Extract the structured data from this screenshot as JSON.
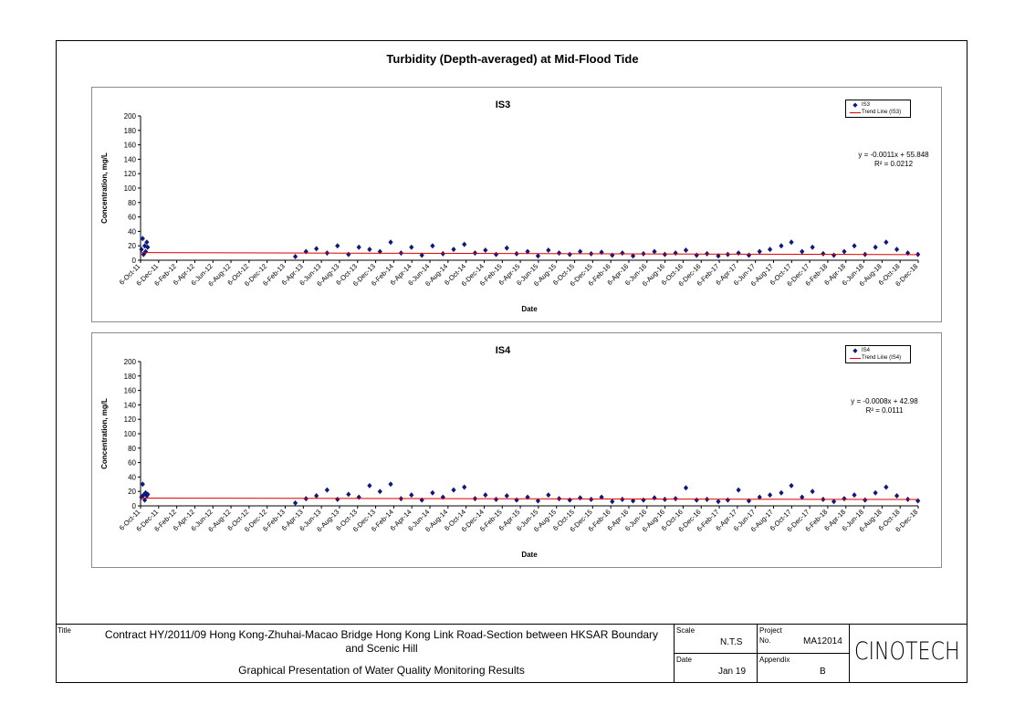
{
  "main_title": "Turbidity (Depth-averaged) at Mid-Flood Tide",
  "chart_data": [
    {
      "type": "scatter",
      "title": "IS3",
      "xlabel": "Date",
      "ylabel": "Concentration, mg/L",
      "ylim": [
        0,
        200
      ],
      "yticks": [
        0,
        20,
        40,
        60,
        80,
        100,
        120,
        140,
        160,
        180,
        200
      ],
      "xlim": [
        "2011-10-06",
        "2018-12-06"
      ],
      "xticks": [
        "6-Oct-11",
        "6-Dec-11",
        "6-Feb-12",
        "6-Apr-12",
        "6-Jun-12",
        "6-Aug-12",
        "6-Oct-12",
        "6-Dec-12",
        "6-Feb-13",
        "6-Apr-13",
        "6-Jun-13",
        "6-Aug-13",
        "6-Oct-13",
        "6-Dec-13",
        "6-Feb-14",
        "6-Apr-14",
        "6-Jun-14",
        "6-Aug-14",
        "6-Oct-14",
        "6-Dec-14",
        "6-Feb-15",
        "6-Apr-15",
        "6-Jun-15",
        "6-Aug-15",
        "6-Oct-15",
        "6-Dec-15",
        "6-Feb-16",
        "6-Apr-16",
        "6-Jun-16",
        "6-Aug-16",
        "6-Oct-16",
        "6-Dec-16",
        "6-Feb-17",
        "6-Apr-17",
        "6-Jun-17",
        "6-Aug-17",
        "6-Oct-17",
        "6-Dec-17",
        "6-Feb-18",
        "6-Apr-18",
        "6-Jun-18",
        "6-Aug-18",
        "6-Oct-18",
        "6-Dec-18"
      ],
      "legend": [
        "IS3",
        "Trend Line (IS3)"
      ],
      "legend_placement": "top-right",
      "equation": "y = -0.0011x + 55.848",
      "r_squared": "R² = 0.0212",
      "trend": {
        "start_value": 10.6,
        "end_value": 7.8
      },
      "colors": {
        "series": "#0c1a7d",
        "trend": "#e00000"
      },
      "grid": false,
      "series": [
        {
          "name": "IS3",
          "x": [
            "2011-10-09",
            "2011-10-13",
            "2011-10-16",
            "2011-10-20",
            "2011-10-23",
            "2011-10-27",
            "2011-10-30",
            "2013-03-10",
            "2013-04-15",
            "2013-05-20",
            "2013-06-25",
            "2013-07-30",
            "2013-09-05",
            "2013-10-10",
            "2013-11-15",
            "2013-12-20",
            "2014-01-25",
            "2014-03-01",
            "2014-04-05",
            "2014-05-10",
            "2014-06-15",
            "2014-07-20",
            "2014-08-25",
            "2014-09-30",
            "2014-11-05",
            "2014-12-10",
            "2015-01-15",
            "2015-02-20",
            "2015-03-25",
            "2015-05-01",
            "2015-06-05",
            "2015-07-10",
            "2015-08-15",
            "2015-09-20",
            "2015-10-25",
            "2015-12-01",
            "2016-01-05",
            "2016-02-10",
            "2016-03-15",
            "2016-04-20",
            "2016-05-25",
            "2016-07-01",
            "2016-08-05",
            "2016-09-10",
            "2016-10-15",
            "2016-11-20",
            "2016-12-25",
            "2017-02-01",
            "2017-03-05",
            "2017-04-10",
            "2017-05-15",
            "2017-06-20",
            "2017-07-25",
            "2017-09-01",
            "2017-10-05",
            "2017-11-10",
            "2017-12-15",
            "2018-01-20",
            "2018-02-25",
            "2018-04-01",
            "2018-05-05",
            "2018-06-10",
            "2018-07-15",
            "2018-08-20",
            "2018-09-25",
            "2018-11-01",
            "2018-12-05"
          ],
          "values": [
            15,
            30,
            8,
            20,
            12,
            25,
            18,
            5,
            12,
            16,
            10,
            20,
            8,
            18,
            15,
            12,
            25,
            10,
            18,
            7,
            20,
            9,
            15,
            22,
            10,
            14,
            8,
            17,
            9,
            12,
            6,
            14,
            10,
            8,
            12,
            9,
            11,
            7,
            10,
            6,
            9,
            12,
            8,
            10,
            14,
            7,
            9,
            6,
            8,
            10,
            7,
            12,
            15,
            20,
            25,
            12,
            18,
            9,
            7,
            12,
            20,
            8,
            18,
            25,
            15,
            10,
            8
          ]
        }
      ]
    },
    {
      "type": "scatter",
      "title": "IS4",
      "xlabel": "Date",
      "ylabel": "Concentration, mg/L",
      "ylim": [
        0,
        200
      ],
      "yticks": [
        0,
        20,
        40,
        60,
        80,
        100,
        120,
        140,
        160,
        180,
        200
      ],
      "xlim": [
        "2011-10-06",
        "2018-12-06"
      ],
      "xticks": [
        "6-Oct-11",
        "6-Dec-11",
        "6-Feb-12",
        "6-Apr-12",
        "6-Jun-12",
        "6-Aug-12",
        "6-Oct-12",
        "6-Dec-12",
        "6-Feb-13",
        "6-Apr-13",
        "6-Jun-13",
        "6-Aug-13",
        "6-Oct-13",
        "6-Dec-13",
        "6-Feb-14",
        "6-Apr-14",
        "6-Jun-14",
        "6-Aug-14",
        "6-Oct-14",
        "6-Dec-14",
        "6-Feb-15",
        "6-Apr-15",
        "6-Jun-15",
        "6-Aug-15",
        "6-Oct-15",
        "6-Dec-15",
        "6-Feb-16",
        "6-Apr-16",
        "6-Jun-16",
        "6-Aug-16",
        "6-Oct-16",
        "6-Dec-16",
        "6-Feb-17",
        "6-Apr-17",
        "6-Jun-17",
        "6-Aug-17",
        "6-Oct-17",
        "6-Dec-17",
        "6-Feb-18",
        "6-Apr-18",
        "6-Jun-18",
        "6-Aug-18",
        "6-Oct-18",
        "6-Dec-18"
      ],
      "legend": [
        "IS4",
        "Trend Line (IS4)"
      ],
      "legend_placement": "top-right",
      "equation": "y = -0.0008x + 42.98",
      "r_squared": "R² = 0.0111",
      "trend": {
        "start_value": 10.8,
        "end_value": 8.8
      },
      "colors": {
        "series": "#0c1a7d",
        "trend": "#e00000"
      },
      "grid": false,
      "series": [
        {
          "name": "IS4",
          "x": [
            "2011-10-09",
            "2011-10-13",
            "2011-10-16",
            "2011-10-20",
            "2011-10-23",
            "2011-10-27",
            "2011-10-30",
            "2013-03-10",
            "2013-04-15",
            "2013-05-20",
            "2013-06-25",
            "2013-07-30",
            "2013-09-05",
            "2013-10-10",
            "2013-11-15",
            "2013-12-20",
            "2014-01-25",
            "2014-03-01",
            "2014-04-05",
            "2014-05-10",
            "2014-06-15",
            "2014-07-20",
            "2014-08-25",
            "2014-09-30",
            "2014-11-05",
            "2014-12-10",
            "2015-01-15",
            "2015-02-20",
            "2015-03-25",
            "2015-05-01",
            "2015-06-05",
            "2015-07-10",
            "2015-08-15",
            "2015-09-20",
            "2015-10-25",
            "2015-12-01",
            "2016-01-05",
            "2016-02-10",
            "2016-03-15",
            "2016-04-20",
            "2016-05-25",
            "2016-07-01",
            "2016-08-05",
            "2016-09-10",
            "2016-10-15",
            "2016-11-20",
            "2016-12-25",
            "2017-02-01",
            "2017-03-05",
            "2017-04-10",
            "2017-05-15",
            "2017-06-20",
            "2017-07-25",
            "2017-09-01",
            "2017-10-05",
            "2017-11-10",
            "2017-12-15",
            "2018-01-20",
            "2018-02-25",
            "2018-04-01",
            "2018-05-05",
            "2018-06-10",
            "2018-07-15",
            "2018-08-20",
            "2018-09-25",
            "2018-11-01",
            "2018-12-05"
          ],
          "values": [
            12,
            30,
            15,
            8,
            18,
            14,
            16,
            4,
            10,
            14,
            22,
            9,
            16,
            12,
            28,
            20,
            30,
            10,
            15,
            8,
            18,
            12,
            22,
            26,
            10,
            15,
            9,
            14,
            8,
            12,
            7,
            15,
            10,
            8,
            11,
            9,
            12,
            6,
            9,
            7,
            8,
            11,
            9,
            10,
            25,
            8,
            9,
            6,
            8,
            22,
            7,
            12,
            15,
            18,
            28,
            12,
            20,
            9,
            6,
            10,
            15,
            8,
            18,
            26,
            14,
            9,
            7
          ]
        }
      ]
    }
  ],
  "titleblock": {
    "title_label": "Title",
    "title_line1": "Contract HY/2011/09 Hong Kong-Zhuhai-Macao Bridge Hong Kong Link Road-Section between HKSAR Boundary",
    "title_line2": "and Scenic Hill",
    "subtitle": "Graphical Presentation of Water Quality Monitoring Results",
    "scale_label": "Scale",
    "scale_value": "N.T.S",
    "date_label": "Date",
    "date_value": "Jan 19",
    "project_label": "Project",
    "project_no_label": "No.",
    "project_value": "MA12014",
    "appendix_label": "Appendix",
    "appendix_value": "B",
    "logo_text": "CINOTECH"
  }
}
